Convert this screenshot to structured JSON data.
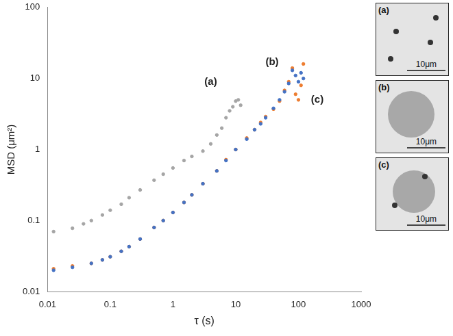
{
  "chart_data": {
    "type": "scatter",
    "x_label": "τ (s)",
    "y_label": "MSD (μm²)",
    "log": true,
    "grid": false,
    "xlim": [
      0.01,
      1000
    ],
    "xticks": [
      0.01,
      0.1,
      1,
      10,
      100,
      1000
    ],
    "ylim": [
      0.01,
      100
    ],
    "yticks": [
      0.01,
      0.1,
      1,
      10,
      100
    ],
    "series": [
      {
        "name": "(a)",
        "color": "#a5a5a5",
        "marker": "circle",
        "x": [
          0.0125,
          0.025,
          0.0375,
          0.05,
          0.075,
          0.1,
          0.15,
          0.2,
          0.3,
          0.5,
          0.7,
          1,
          1.5,
          2,
          3,
          4,
          5,
          6,
          7,
          8,
          9,
          10,
          11,
          12
        ],
        "values": [
          0.07,
          0.078,
          0.09,
          0.1,
          0.12,
          0.14,
          0.17,
          0.21,
          0.27,
          0.37,
          0.45,
          0.55,
          0.7,
          0.8,
          0.95,
          1.2,
          1.6,
          2.0,
          2.8,
          3.5,
          4.0,
          4.8,
          5.0,
          4.2
        ]
      },
      {
        "name": "(b)",
        "color": "#4472c4",
        "marker": "circle",
        "x": [
          0.0125,
          0.025,
          0.05,
          0.075,
          0.1,
          0.15,
          0.2,
          0.3,
          0.5,
          0.7,
          1,
          1.5,
          2,
          3,
          5,
          7,
          10,
          15,
          20,
          25,
          30,
          40,
          50,
          60,
          70,
          80,
          90,
          100,
          110,
          120
        ],
        "values": [
          0.02,
          0.022,
          0.025,
          0.028,
          0.031,
          0.037,
          0.043,
          0.055,
          0.08,
          0.1,
          0.13,
          0.18,
          0.23,
          0.33,
          0.5,
          0.7,
          1.0,
          1.4,
          1.9,
          2.3,
          2.8,
          3.8,
          5.0,
          6.5,
          8.5,
          13,
          11,
          9,
          12,
          10
        ]
      },
      {
        "name": "(c)",
        "color": "#ed7d31",
        "marker": "circle",
        "x": [
          0.0125,
          0.025,
          0.05,
          0.075,
          0.1,
          0.15,
          0.2,
          0.3,
          0.5,
          0.7,
          1,
          1.5,
          2,
          3,
          5,
          7,
          10,
          15,
          20,
          25,
          30,
          40,
          50,
          60,
          70,
          80,
          90,
          100,
          110,
          120
        ],
        "values": [
          0.021,
          0.023,
          0.025,
          0.028,
          0.031,
          0.037,
          0.043,
          0.055,
          0.08,
          0.1,
          0.13,
          0.18,
          0.23,
          0.33,
          0.5,
          0.72,
          1.0,
          1.45,
          1.9,
          2.4,
          2.9,
          3.7,
          4.8,
          6.8,
          9,
          14,
          6,
          5,
          8,
          16
        ]
      }
    ],
    "annotations": [
      {
        "text": "(a)",
        "x": 4,
        "y": 9
      },
      {
        "text": "(b)",
        "x": 38,
        "y": 17
      },
      {
        "text": "(c)",
        "x": 200,
        "y": 5
      }
    ]
  },
  "panels": [
    {
      "label": "(a)",
      "scale_bar": "10μm"
    },
    {
      "label": "(b)",
      "scale_bar": "10μm"
    },
    {
      "label": "(c)",
      "scale_bar": "10μm"
    }
  ]
}
